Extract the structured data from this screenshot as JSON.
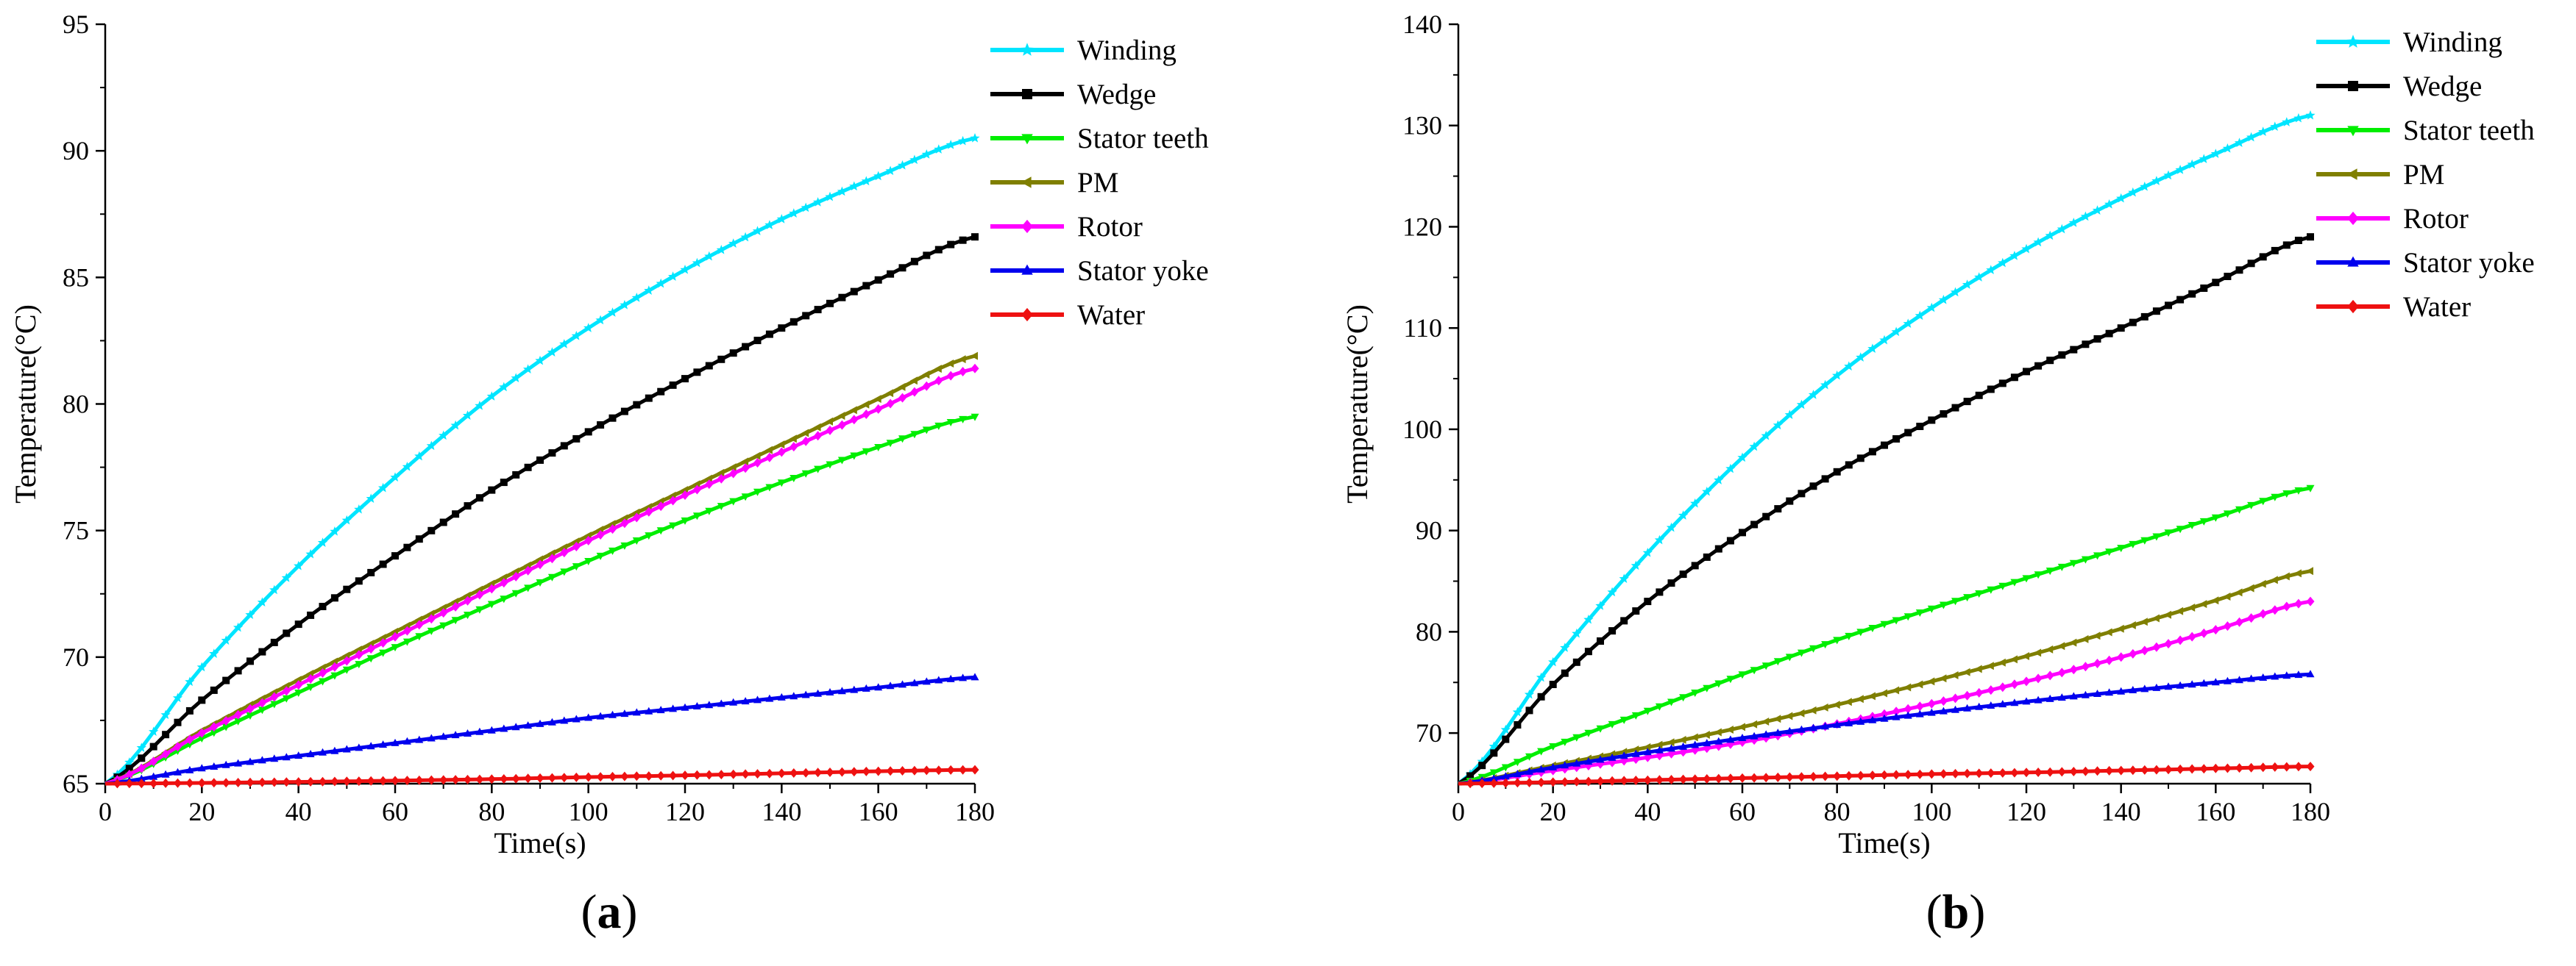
{
  "chart_data": [
    {
      "type": "line",
      "panel_label": "a",
      "xlabel": "Time(s)",
      "ylabel": "Temperature(°C)",
      "xlim": [
        0,
        180
      ],
      "ylim": [
        65,
        95
      ],
      "xticks": [
        0,
        20,
        40,
        60,
        80,
        100,
        120,
        140,
        160,
        180
      ],
      "yticks": [
        65,
        70,
        75,
        80,
        85,
        90,
        95
      ],
      "legend_position": "top-right",
      "series": [
        {
          "name": "Winding",
          "color": "#00e5ff",
          "marker": "star",
          "x": [
            0,
            20,
            40,
            60,
            80,
            100,
            120,
            140,
            160,
            180
          ],
          "y": [
            65,
            69.6,
            73.6,
            77.1,
            80.3,
            83.0,
            85.3,
            87.3,
            89.0,
            90.5
          ]
        },
        {
          "name": "Wedge",
          "color": "#000000",
          "marker": "square",
          "x": [
            0,
            20,
            40,
            60,
            80,
            100,
            120,
            140,
            160,
            180
          ],
          "y": [
            65,
            68.3,
            71.3,
            74.0,
            76.6,
            78.9,
            81.0,
            83.0,
            84.9,
            86.6
          ]
        },
        {
          "name": "Stator teeth",
          "color": "#00ee00",
          "marker": "triangle-down",
          "x": [
            0,
            20,
            40,
            60,
            80,
            100,
            120,
            140,
            160,
            180
          ],
          "y": [
            65,
            66.8,
            68.6,
            70.4,
            72.1,
            73.8,
            75.4,
            76.9,
            78.3,
            79.5
          ]
        },
        {
          "name": "PM",
          "color": "#7f7f00",
          "marker": "triangle-left",
          "x": [
            0,
            20,
            40,
            60,
            80,
            100,
            120,
            140,
            160,
            180
          ],
          "y": [
            65,
            67.1,
            69.1,
            71.0,
            72.9,
            74.8,
            76.6,
            78.4,
            80.2,
            81.9
          ]
        },
        {
          "name": "Rotor",
          "color": "#ff00ff",
          "marker": "diamond",
          "x": [
            0,
            20,
            40,
            60,
            80,
            100,
            120,
            140,
            160,
            180
          ],
          "y": [
            65,
            67.0,
            68.9,
            70.8,
            72.7,
            74.6,
            76.4,
            78.1,
            79.8,
            81.4
          ]
        },
        {
          "name": "Stator yoke",
          "color": "#0000ee",
          "marker": "triangle-up",
          "x": [
            0,
            20,
            40,
            60,
            80,
            100,
            120,
            140,
            160,
            180
          ],
          "y": [
            65,
            65.6,
            66.1,
            66.6,
            67.1,
            67.6,
            68.0,
            68.4,
            68.8,
            69.2
          ]
        },
        {
          "name": "Water",
          "color": "#ee1111",
          "marker": "diamond",
          "x": [
            0,
            20,
            40,
            60,
            80,
            100,
            120,
            140,
            160,
            180
          ],
          "y": [
            65,
            65.03,
            65.07,
            65.12,
            65.18,
            65.26,
            65.33,
            65.41,
            65.49,
            65.55
          ]
        }
      ]
    },
    {
      "type": "line",
      "panel_label": "b",
      "xlabel": "Time(s)",
      "ylabel": "Temperature(°C)",
      "xlim": [
        0,
        180
      ],
      "ylim": [
        65,
        140
      ],
      "xticks": [
        0,
        20,
        40,
        60,
        80,
        100,
        120,
        140,
        160,
        180
      ],
      "yticks": [
        70,
        80,
        90,
        100,
        110,
        120,
        130,
        140
      ],
      "legend_position": "top-right",
      "series": [
        {
          "name": "Winding",
          "color": "#00e5ff",
          "marker": "star",
          "x": [
            0,
            20,
            40,
            60,
            80,
            100,
            120,
            140,
            160,
            180
          ],
          "y": [
            65,
            77.0,
            87.8,
            97.2,
            105.3,
            112.0,
            117.8,
            122.8,
            127.2,
            131.0
          ]
        },
        {
          "name": "Wedge",
          "color": "#000000",
          "marker": "square",
          "x": [
            0,
            20,
            40,
            60,
            80,
            100,
            120,
            140,
            160,
            180
          ],
          "y": [
            65,
            74.8,
            83.0,
            89.8,
            95.8,
            100.9,
            105.7,
            110.0,
            114.5,
            119.0
          ]
        },
        {
          "name": "Stator teeth",
          "color": "#00ee00",
          "marker": "triangle-down",
          "x": [
            0,
            20,
            40,
            60,
            80,
            100,
            120,
            140,
            160,
            180
          ],
          "y": [
            65,
            68.7,
            72.2,
            75.8,
            79.2,
            82.3,
            85.3,
            88.3,
            91.3,
            94.2
          ]
        },
        {
          "name": "PM",
          "color": "#7f7f00",
          "marker": "triangle-left",
          "x": [
            0,
            20,
            40,
            60,
            80,
            100,
            120,
            140,
            160,
            180
          ],
          "y": [
            65,
            66.8,
            68.6,
            70.6,
            72.8,
            75.1,
            77.6,
            80.3,
            83.1,
            86.0
          ]
        },
        {
          "name": "Rotor",
          "color": "#ff00ff",
          "marker": "diamond",
          "x": [
            0,
            20,
            40,
            60,
            80,
            100,
            120,
            140,
            160,
            180
          ],
          "y": [
            65,
            66.3,
            67.6,
            69.1,
            70.9,
            72.9,
            75.1,
            77.5,
            80.2,
            83.0
          ]
        },
        {
          "name": "Stator yoke",
          "color": "#0000ee",
          "marker": "triangle-up",
          "x": [
            0,
            20,
            40,
            60,
            80,
            100,
            120,
            140,
            160,
            180
          ],
          "y": [
            65,
            66.6,
            68.1,
            69.5,
            70.8,
            72.0,
            73.1,
            74.1,
            75.0,
            75.8
          ]
        },
        {
          "name": "Water",
          "color": "#ee1111",
          "marker": "diamond",
          "x": [
            0,
            20,
            40,
            60,
            80,
            100,
            120,
            140,
            160,
            180
          ],
          "y": [
            65,
            65.15,
            65.35,
            65.55,
            65.75,
            65.95,
            66.1,
            66.3,
            66.5,
            66.7
          ]
        }
      ]
    }
  ]
}
